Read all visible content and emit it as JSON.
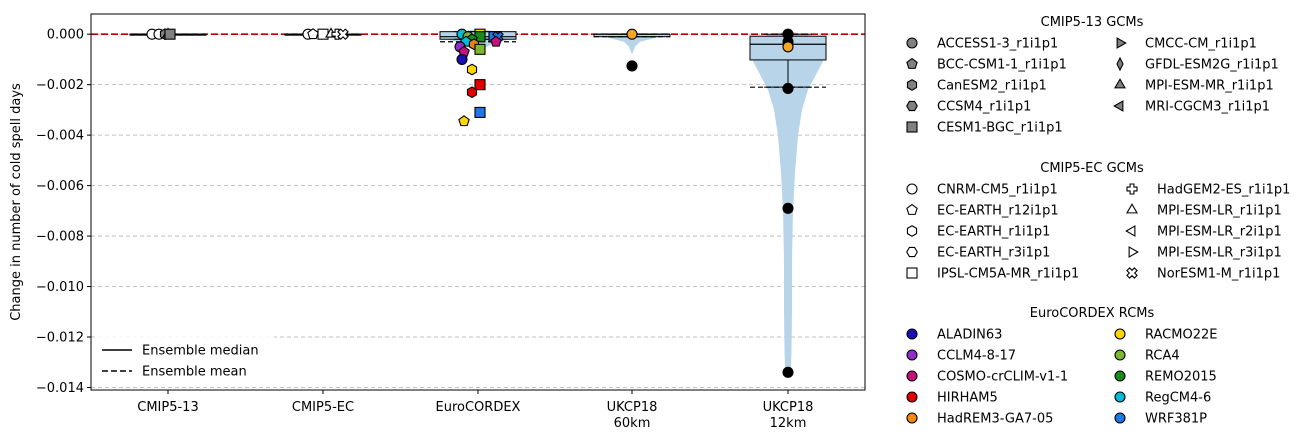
{
  "chart_data": {
    "type": "violin",
    "ylabel": "Change in number of cold spell days",
    "ylim": [
      -0.0141,
      0.0008
    ],
    "yticks": [
      0.0,
      -0.002,
      -0.004,
      -0.006,
      -0.008,
      -0.01,
      -0.012,
      -0.014
    ],
    "ytick_labels": [
      "0.000",
      "−0.002",
      "−0.004",
      "−0.006",
      "−0.008",
      "−0.010",
      "−0.012",
      "−0.014"
    ],
    "grid": "y-dashed",
    "reference_line": {
      "y": 0,
      "color": "#b30000",
      "style": "dashed"
    },
    "categories": [
      {
        "label": [
          "CMIP5-13"
        ],
        "median": 0.0,
        "mean": 0.0,
        "q1": 0.0,
        "q3": 0.0,
        "whisker_low": 0.0,
        "whisker_high": 0.0
      },
      {
        "label": [
          "CMIP5-EC"
        ],
        "median": 0.0,
        "mean": 0.0,
        "q1": 0.0,
        "q3": 0.0,
        "whisker_low": 0.0,
        "whisker_high": 0.0
      },
      {
        "label": [
          "EuroCORDEX"
        ],
        "median": -0.0001,
        "mean": -0.0003,
        "q1": -0.0002,
        "q3": 0.0001,
        "whisker_low": -0.0002,
        "whisker_high": 0.0001
      },
      {
        "label": [
          "UKCP18",
          "60km"
        ],
        "median": 0.0,
        "mean": -0.0001,
        "q1": -0.0001,
        "q3": 0.0,
        "whisker_low": -0.0001,
        "whisker_high": 0.0
      },
      {
        "label": [
          "UKCP18",
          "12km"
        ],
        "median": -0.0004,
        "mean": -0.0021,
        "q1": -0.00102,
        "q3": -8e-05,
        "whisker_low": -0.0021,
        "whisker_high": 0.0
      }
    ],
    "violin_color": "#b8d4e9",
    "points": [
      {
        "cat": 0,
        "y": 0.0,
        "dx": -16,
        "marker": "circle",
        "fill": "#ffffff"
      },
      {
        "cat": 0,
        "y": 0.0,
        "dx": -9,
        "marker": "circle",
        "fill": "#ffffff"
      },
      {
        "cat": 0,
        "y": 0.0,
        "dx": -3,
        "marker": "hexagon",
        "fill": "#808080"
      },
      {
        "cat": 0,
        "y": 0.0,
        "dx": 0,
        "marker": "triangle-up",
        "fill": "#808080"
      },
      {
        "cat": 0,
        "y": 0.0,
        "dx": 2,
        "marker": "square",
        "fill": "#808080"
      },
      {
        "cat": 1,
        "y": 0.0,
        "dx": -15,
        "marker": "circle",
        "fill": "#ffffff"
      },
      {
        "cat": 1,
        "y": 0.0,
        "dx": -10,
        "marker": "pentagon",
        "fill": "#ffffff"
      },
      {
        "cat": 1,
        "y": 0.0,
        "dx": 0,
        "marker": "square",
        "fill": "#ffffff"
      },
      {
        "cat": 1,
        "y": 0.0,
        "dx": 8,
        "marker": "triangle-up",
        "fill": "#ffffff"
      },
      {
        "cat": 1,
        "y": 0.0,
        "dx": 14,
        "marker": "cross",
        "fill": "#ffffff"
      },
      {
        "cat": 1,
        "y": 0.0,
        "dx": 20,
        "marker": "x",
        "fill": "#ffffff"
      },
      {
        "cat": 2,
        "y": 0.0,
        "dx": -16,
        "marker": "circle",
        "fill": "#00bcd4"
      },
      {
        "cat": 2,
        "y": 0.0,
        "dx": 2,
        "marker": "square",
        "fill": "#ffd700"
      },
      {
        "cat": 2,
        "y": -0.0001,
        "dx": -10,
        "marker": "circle",
        "fill": "#7cb82f"
      },
      {
        "cat": 2,
        "y": -0.0001,
        "dx": 2,
        "marker": "square",
        "fill": "#1a8a1a"
      },
      {
        "cat": 2,
        "y": -0.0001,
        "dx": 16,
        "marker": "square",
        "fill": "#1f77e8"
      },
      {
        "cat": 2,
        "y": -0.0001,
        "dx": 20,
        "marker": "x",
        "fill": "#1f77e8"
      },
      {
        "cat": 2,
        "y": -0.0002,
        "dx": -6,
        "marker": "pentagon",
        "fill": "#1a8a1a"
      },
      {
        "cat": 2,
        "y": -0.0003,
        "dx": -12,
        "marker": "pentagon",
        "fill": "#00bcd4"
      },
      {
        "cat": 2,
        "y": -0.0003,
        "dx": 18,
        "marker": "pentagon",
        "fill": "#c4127d"
      },
      {
        "cat": 2,
        "y": -0.0004,
        "dx": -4,
        "marker": "hexagon",
        "fill": "#e67e22"
      },
      {
        "cat": 2,
        "y": -0.0005,
        "dx": -18,
        "marker": "circle",
        "fill": "#8e2ec7"
      },
      {
        "cat": 2,
        "y": -0.0006,
        "dx": 2,
        "marker": "square",
        "fill": "#7cb82f"
      },
      {
        "cat": 2,
        "y": -0.0007,
        "dx": -14,
        "marker": "pentagon",
        "fill": "#c4127d"
      },
      {
        "cat": 2,
        "y": -0.001,
        "dx": -16,
        "marker": "circle",
        "fill": "#1a0fb4"
      },
      {
        "cat": 2,
        "y": -0.0014,
        "dx": -6,
        "marker": "hexagon",
        "fill": "#ffd700"
      },
      {
        "cat": 2,
        "y": -0.002,
        "dx": 2,
        "marker": "square",
        "fill": "#e10000"
      },
      {
        "cat": 2,
        "y": -0.0023,
        "dx": -6,
        "marker": "hexagon",
        "fill": "#e10000"
      },
      {
        "cat": 2,
        "y": -0.0031,
        "dx": 2,
        "marker": "square",
        "fill": "#1f77e8"
      },
      {
        "cat": 2,
        "y": -0.00345,
        "dx": -14,
        "marker": "pentagon",
        "fill": "#ffd700"
      },
      {
        "cat": 3,
        "y": 0.0,
        "dx": 0,
        "marker": "circle",
        "fill": "#f5a623"
      },
      {
        "cat": 3,
        "y": -0.00126,
        "dx": 0,
        "marker": "circle",
        "fill": "#000000"
      },
      {
        "cat": 4,
        "y": 0.0,
        "dx": 0,
        "marker": "circle",
        "fill": "#000000"
      },
      {
        "cat": 4,
        "y": -0.0003,
        "dx": 0,
        "marker": "circle",
        "fill": "#000000"
      },
      {
        "cat": 4,
        "y": -0.0005,
        "dx": 0,
        "marker": "circle",
        "fill": "#f5a623"
      },
      {
        "cat": 4,
        "y": -0.00215,
        "dx": 0,
        "marker": "circle",
        "fill": "#000000"
      },
      {
        "cat": 4,
        "y": -0.0069,
        "dx": 0,
        "marker": "circle",
        "fill": "#000000"
      },
      {
        "cat": 4,
        "y": -0.0134,
        "dx": 0,
        "marker": "circle",
        "fill": "#000000"
      }
    ],
    "ensemble_legend": [
      {
        "label": "Ensemble median",
        "style": "solid"
      },
      {
        "label": "Ensemble mean",
        "style": "dashed"
      }
    ],
    "legend_groups": [
      {
        "title": "CMIP5-13 GCMs",
        "filled": true,
        "columns": [
          [
            {
              "label": "ACCESS1-3_r1i1p1",
              "marker": "circle"
            },
            {
              "label": "BCC-CSM1-1_r1i1p1",
              "marker": "pentagon"
            },
            {
              "label": "CanESM2_r1i1p1",
              "marker": "hexagon"
            },
            {
              "label": "CCSM4_r1i1p1",
              "marker": "hexagon2"
            },
            {
              "label": "CESM1-BGC_r1i1p1",
              "marker": "square"
            }
          ],
          [
            {
              "label": "CMCC-CM_r1i1p1",
              "marker": "triangle-right"
            },
            {
              "label": "GFDL-ESM2G_r1i1p1",
              "marker": "diamond"
            },
            {
              "label": "MPI-ESM-MR_r1i1p1",
              "marker": "triangle-up"
            },
            {
              "label": "MRI-CGCM3_r1i1p1",
              "marker": "triangle-left"
            }
          ]
        ]
      },
      {
        "title": "CMIP5-EC GCMs",
        "filled": false,
        "columns": [
          [
            {
              "label": "CNRM-CM5_r1i1p1",
              "marker": "circle"
            },
            {
              "label": "EC-EARTH_r12i1p1",
              "marker": "pentagon"
            },
            {
              "label": "EC-EARTH_r1i1p1",
              "marker": "hexagon"
            },
            {
              "label": "EC-EARTH_r3i1p1",
              "marker": "hexagon2"
            },
            {
              "label": "IPSL-CM5A-MR_r1i1p1",
              "marker": "square"
            }
          ],
          [
            {
              "label": "HadGEM2-ES_r1i1p1",
              "marker": "cross"
            },
            {
              "label": "MPI-ESM-LR_r1i1p1",
              "marker": "triangle-up"
            },
            {
              "label": "MPI-ESM-LR_r2i1p1",
              "marker": "triangle-left"
            },
            {
              "label": "MPI-ESM-LR_r3i1p1",
              "marker": "triangle-right"
            },
            {
              "label": "NorESM1-M_r1i1p1",
              "marker": "x"
            }
          ]
        ]
      },
      {
        "title": "EuroCORDEX RCMs",
        "filled": true,
        "columns": [
          [
            {
              "label": "ALADIN63",
              "marker": "circle",
              "color": "#1a0fb4"
            },
            {
              "label": "CCLM4-8-17",
              "marker": "circle",
              "color": "#8e2ec7"
            },
            {
              "label": "COSMO-crCLIM-v1-1",
              "marker": "circle",
              "color": "#c4127d"
            },
            {
              "label": "HIRHAM5",
              "marker": "circle",
              "color": "#e10000"
            },
            {
              "label": "HadREM3-GA7-05",
              "marker": "circle",
              "color": "#f58a07"
            }
          ],
          [
            {
              "label": "RACMO22E",
              "marker": "circle",
              "color": "#ffd700"
            },
            {
              "label": "RCA4",
              "marker": "circle",
              "color": "#7cb82f"
            },
            {
              "label": "REMO2015",
              "marker": "circle",
              "color": "#1a8a1a"
            },
            {
              "label": "RegCM4-6",
              "marker": "circle",
              "color": "#00bcd4"
            },
            {
              "label": "WRF381P",
              "marker": "circle",
              "color": "#1f77e8"
            }
          ]
        ]
      }
    ]
  }
}
